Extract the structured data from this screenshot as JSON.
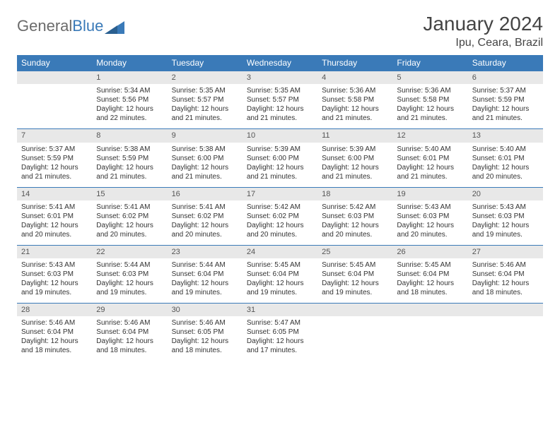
{
  "logo": {
    "part1": "General",
    "part2": "Blue"
  },
  "title": "January 2024",
  "location": "Ipu, Ceara, Brazil",
  "colors": {
    "header_bg": "#3a7ab8",
    "header_fg": "#ffffff",
    "daynum_bg": "#e8e8e8",
    "border": "#3a7ab8",
    "text": "#333333",
    "logo_gray": "#6b6b6b",
    "logo_blue": "#3a7ab8"
  },
  "typography": {
    "title_fontsize": 28,
    "location_fontsize": 16,
    "dayhead_fontsize": 12,
    "body_fontsize": 10
  },
  "dayHeaders": [
    "Sunday",
    "Monday",
    "Tuesday",
    "Wednesday",
    "Thursday",
    "Friday",
    "Saturday"
  ],
  "weeks": [
    [
      null,
      {
        "n": "1",
        "sr": "Sunrise: 5:34 AM",
        "ss": "Sunset: 5:56 PM",
        "d1": "Daylight: 12 hours",
        "d2": "and 22 minutes."
      },
      {
        "n": "2",
        "sr": "Sunrise: 5:35 AM",
        "ss": "Sunset: 5:57 PM",
        "d1": "Daylight: 12 hours",
        "d2": "and 21 minutes."
      },
      {
        "n": "3",
        "sr": "Sunrise: 5:35 AM",
        "ss": "Sunset: 5:57 PM",
        "d1": "Daylight: 12 hours",
        "d2": "and 21 minutes."
      },
      {
        "n": "4",
        "sr": "Sunrise: 5:36 AM",
        "ss": "Sunset: 5:58 PM",
        "d1": "Daylight: 12 hours",
        "d2": "and 21 minutes."
      },
      {
        "n": "5",
        "sr": "Sunrise: 5:36 AM",
        "ss": "Sunset: 5:58 PM",
        "d1": "Daylight: 12 hours",
        "d2": "and 21 minutes."
      },
      {
        "n": "6",
        "sr": "Sunrise: 5:37 AM",
        "ss": "Sunset: 5:59 PM",
        "d1": "Daylight: 12 hours",
        "d2": "and 21 minutes."
      }
    ],
    [
      {
        "n": "7",
        "sr": "Sunrise: 5:37 AM",
        "ss": "Sunset: 5:59 PM",
        "d1": "Daylight: 12 hours",
        "d2": "and 21 minutes."
      },
      {
        "n": "8",
        "sr": "Sunrise: 5:38 AM",
        "ss": "Sunset: 5:59 PM",
        "d1": "Daylight: 12 hours",
        "d2": "and 21 minutes."
      },
      {
        "n": "9",
        "sr": "Sunrise: 5:38 AM",
        "ss": "Sunset: 6:00 PM",
        "d1": "Daylight: 12 hours",
        "d2": "and 21 minutes."
      },
      {
        "n": "10",
        "sr": "Sunrise: 5:39 AM",
        "ss": "Sunset: 6:00 PM",
        "d1": "Daylight: 12 hours",
        "d2": "and 21 minutes."
      },
      {
        "n": "11",
        "sr": "Sunrise: 5:39 AM",
        "ss": "Sunset: 6:00 PM",
        "d1": "Daylight: 12 hours",
        "d2": "and 21 minutes."
      },
      {
        "n": "12",
        "sr": "Sunrise: 5:40 AM",
        "ss": "Sunset: 6:01 PM",
        "d1": "Daylight: 12 hours",
        "d2": "and 21 minutes."
      },
      {
        "n": "13",
        "sr": "Sunrise: 5:40 AM",
        "ss": "Sunset: 6:01 PM",
        "d1": "Daylight: 12 hours",
        "d2": "and 20 minutes."
      }
    ],
    [
      {
        "n": "14",
        "sr": "Sunrise: 5:41 AM",
        "ss": "Sunset: 6:01 PM",
        "d1": "Daylight: 12 hours",
        "d2": "and 20 minutes."
      },
      {
        "n": "15",
        "sr": "Sunrise: 5:41 AM",
        "ss": "Sunset: 6:02 PM",
        "d1": "Daylight: 12 hours",
        "d2": "and 20 minutes."
      },
      {
        "n": "16",
        "sr": "Sunrise: 5:41 AM",
        "ss": "Sunset: 6:02 PM",
        "d1": "Daylight: 12 hours",
        "d2": "and 20 minutes."
      },
      {
        "n": "17",
        "sr": "Sunrise: 5:42 AM",
        "ss": "Sunset: 6:02 PM",
        "d1": "Daylight: 12 hours",
        "d2": "and 20 minutes."
      },
      {
        "n": "18",
        "sr": "Sunrise: 5:42 AM",
        "ss": "Sunset: 6:03 PM",
        "d1": "Daylight: 12 hours",
        "d2": "and 20 minutes."
      },
      {
        "n": "19",
        "sr": "Sunrise: 5:43 AM",
        "ss": "Sunset: 6:03 PM",
        "d1": "Daylight: 12 hours",
        "d2": "and 20 minutes."
      },
      {
        "n": "20",
        "sr": "Sunrise: 5:43 AM",
        "ss": "Sunset: 6:03 PM",
        "d1": "Daylight: 12 hours",
        "d2": "and 19 minutes."
      }
    ],
    [
      {
        "n": "21",
        "sr": "Sunrise: 5:43 AM",
        "ss": "Sunset: 6:03 PM",
        "d1": "Daylight: 12 hours",
        "d2": "and 19 minutes."
      },
      {
        "n": "22",
        "sr": "Sunrise: 5:44 AM",
        "ss": "Sunset: 6:03 PM",
        "d1": "Daylight: 12 hours",
        "d2": "and 19 minutes."
      },
      {
        "n": "23",
        "sr": "Sunrise: 5:44 AM",
        "ss": "Sunset: 6:04 PM",
        "d1": "Daylight: 12 hours",
        "d2": "and 19 minutes."
      },
      {
        "n": "24",
        "sr": "Sunrise: 5:45 AM",
        "ss": "Sunset: 6:04 PM",
        "d1": "Daylight: 12 hours",
        "d2": "and 19 minutes."
      },
      {
        "n": "25",
        "sr": "Sunrise: 5:45 AM",
        "ss": "Sunset: 6:04 PM",
        "d1": "Daylight: 12 hours",
        "d2": "and 19 minutes."
      },
      {
        "n": "26",
        "sr": "Sunrise: 5:45 AM",
        "ss": "Sunset: 6:04 PM",
        "d1": "Daylight: 12 hours",
        "d2": "and 18 minutes."
      },
      {
        "n": "27",
        "sr": "Sunrise: 5:46 AM",
        "ss": "Sunset: 6:04 PM",
        "d1": "Daylight: 12 hours",
        "d2": "and 18 minutes."
      }
    ],
    [
      {
        "n": "28",
        "sr": "Sunrise: 5:46 AM",
        "ss": "Sunset: 6:04 PM",
        "d1": "Daylight: 12 hours",
        "d2": "and 18 minutes."
      },
      {
        "n": "29",
        "sr": "Sunrise: 5:46 AM",
        "ss": "Sunset: 6:04 PM",
        "d1": "Daylight: 12 hours",
        "d2": "and 18 minutes."
      },
      {
        "n": "30",
        "sr": "Sunrise: 5:46 AM",
        "ss": "Sunset: 6:05 PM",
        "d1": "Daylight: 12 hours",
        "d2": "and 18 minutes."
      },
      {
        "n": "31",
        "sr": "Sunrise: 5:47 AM",
        "ss": "Sunset: 6:05 PM",
        "d1": "Daylight: 12 hours",
        "d2": "and 17 minutes."
      },
      null,
      null,
      null
    ]
  ]
}
